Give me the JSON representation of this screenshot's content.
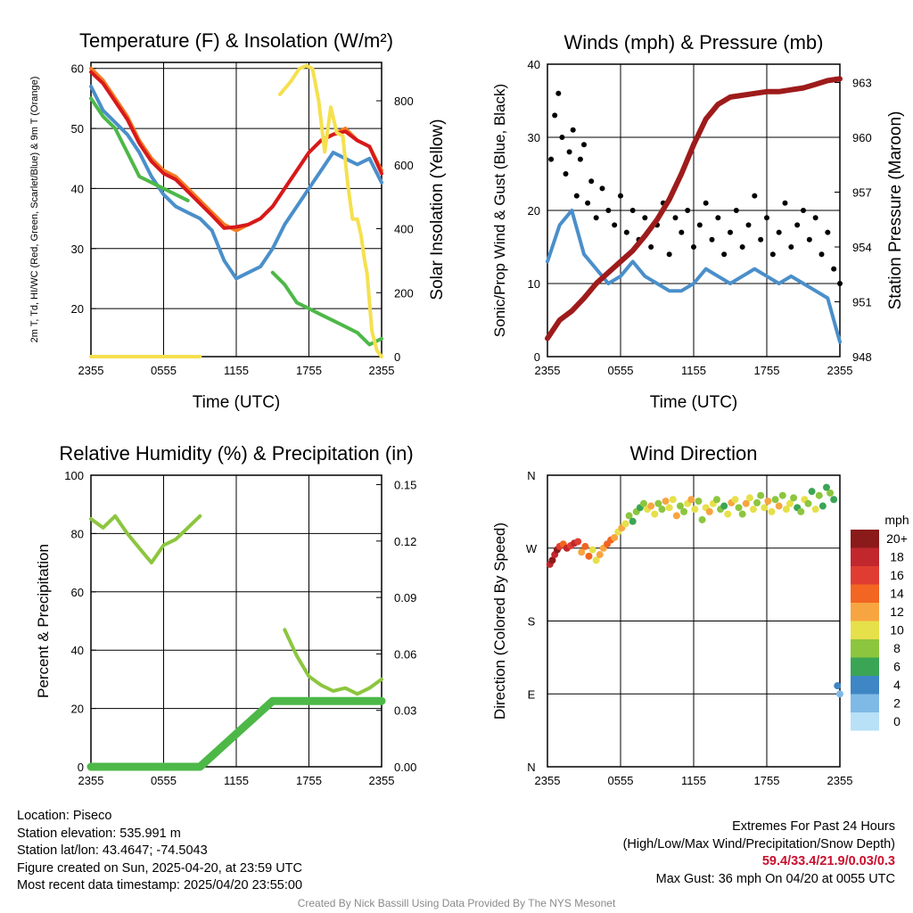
{
  "chart_data": [
    {
      "type": "line",
      "title": "Temperature (F) & Insolation (W/m²)",
      "xlabel": "Time (UTC)",
      "ylabel": "2m T, Td, HI/WC (Red, Green, Scarlet/Blue) & 9m T (Orange)",
      "ylabel2": "Solar Insolation (Yellow)",
      "x_ticks": [
        "2355",
        "0555",
        "1155",
        "1755",
        "2355"
      ],
      "ylim": [
        12,
        61
      ],
      "yticks": [
        20,
        30,
        40,
        50,
        60
      ],
      "y2lim": [
        0,
        920
      ],
      "y2ticks": [
        0,
        200,
        400,
        600,
        800
      ],
      "grid": true,
      "series": [
        {
          "color": "#4a8fca",
          "axis": "left",
          "x": [
            0,
            1,
            2,
            3,
            4,
            5,
            6,
            7,
            8,
            9,
            10,
            11,
            12,
            13,
            14,
            15,
            16,
            17,
            18,
            19,
            20,
            21,
            22,
            23,
            24
          ],
          "y": [
            57,
            53,
            51,
            49,
            46,
            42,
            39,
            37,
            36,
            35,
            33,
            28,
            25,
            26,
            27,
            30,
            34,
            37,
            40,
            43,
            46,
            45,
            44,
            45,
            41
          ]
        },
        {
          "color": "#4db848",
          "axis": "left",
          "x": [
            0,
            1,
            2,
            3,
            4,
            5,
            6,
            7,
            8,
            9,
            10,
            11,
            12,
            13,
            14,
            15,
            16,
            17,
            18,
            19,
            20,
            21,
            22,
            23,
            24
          ],
          "y": [
            55,
            52,
            50,
            46,
            42,
            41,
            40,
            39,
            38,
            null,
            null,
            null,
            null,
            null,
            null,
            26,
            24,
            21,
            20,
            19,
            18,
            17,
            16,
            14,
            15
          ]
        },
        {
          "color": "#f47b20",
          "axis": "left",
          "x": [
            0,
            1,
            2,
            3,
            4,
            5,
            6,
            7,
            8,
            9,
            10,
            11,
            12,
            13,
            14,
            15,
            16,
            17,
            18,
            19,
            20,
            21,
            22,
            23,
            24
          ],
          "y": [
            60,
            58,
            55,
            52,
            48,
            45,
            43,
            42,
            40,
            38,
            36,
            34,
            33,
            34,
            35,
            37,
            40,
            43,
            46,
            48,
            49,
            50,
            48,
            47,
            43
          ]
        },
        {
          "color": "#d7191c",
          "axis": "left",
          "x": [
            0,
            1,
            2,
            3,
            4,
            5,
            6,
            7,
            8,
            9,
            10,
            11,
            12,
            13,
            14,
            15,
            16,
            17,
            18,
            19,
            20,
            21,
            22,
            23,
            24
          ],
          "y": [
            59.4,
            57.5,
            54.5,
            51.5,
            47.5,
            44.5,
            42.5,
            41.5,
            39.5,
            37.5,
            35.5,
            33.4,
            33.6,
            34,
            35,
            37,
            40,
            43,
            46,
            48,
            49,
            49.5,
            48,
            47,
            42.5
          ]
        },
        {
          "color": "#f5e04f",
          "axis": "right",
          "x": [
            0,
            3,
            6,
            9,
            15,
            15.6,
            16.5,
            17.2,
            17.8,
            18.3,
            18.8,
            19.3,
            19.8,
            20.3,
            20.8,
            21.2,
            21.6,
            22.0,
            22.3,
            22.6,
            22.8,
            23.2,
            23.6,
            24
          ],
          "y": [
            0,
            0,
            0,
            0,
            null,
            820,
            860,
            900,
            910,
            900,
            800,
            640,
            780,
            700,
            690,
            540,
            430,
            430,
            380,
            300,
            260,
            80,
            20,
            0
          ]
        }
      ]
    },
    {
      "type": "line",
      "title": "Winds (mph) & Pressure (mb)",
      "xlabel": "Time (UTC)",
      "ylabel": "Sonic/Prop Wind & Gust (Blue, Black)",
      "ylabel2": "Station Pressure (Maroon)",
      "x_ticks": [
        "2355",
        "0555",
        "1155",
        "1755",
        "2355"
      ],
      "ylim": [
        0,
        40
      ],
      "yticks": [
        0,
        10,
        20,
        30,
        40
      ],
      "y2lim": [
        948,
        964
      ],
      "y2ticks": [
        948,
        951,
        954,
        957,
        960,
        963
      ],
      "grid": true,
      "series": [
        {
          "color": "#4a8fca",
          "axis": "left",
          "x": [
            0,
            1,
            2,
            3,
            4,
            5,
            6,
            7,
            8,
            9,
            10,
            11,
            12,
            13,
            14,
            15,
            16,
            17,
            18,
            19,
            20,
            21,
            22,
            23,
            24
          ],
          "y": [
            13,
            18,
            20,
            14,
            12,
            10,
            11,
            13,
            11,
            10,
            9,
            9,
            10,
            12,
            11,
            10,
            11,
            12,
            11,
            10,
            11,
            10,
            9,
            8,
            2
          ]
        },
        {
          "color": "#000000",
          "axis": "left",
          "points": "scatter",
          "x": [
            0.3,
            0.6,
            0.9,
            1.2,
            1.5,
            1.8,
            2.1,
            2.4,
            2.7,
            3.0,
            3.3,
            3.6,
            4.0,
            4.5,
            5.0,
            5.5,
            6.0,
            6.5,
            7.0,
            7.5,
            8.0,
            8.5,
            9.0,
            9.5,
            10.0,
            10.5,
            11.0,
            11.5,
            12.0,
            12.5,
            13.0,
            13.5,
            14.0,
            14.5,
            15.0,
            15.5,
            16.0,
            16.5,
            17.0,
            17.5,
            18.0,
            18.5,
            19.0,
            19.5,
            20.0,
            20.5,
            21.0,
            21.5,
            22.0,
            22.5,
            23.0,
            23.5,
            24.0
          ],
          "y": [
            27,
            33,
            36,
            30,
            25,
            28,
            31,
            22,
            27,
            29,
            21,
            24,
            19,
            23,
            20,
            18,
            22,
            17,
            20,
            16,
            19,
            15,
            18,
            21,
            14,
            19,
            17,
            20,
            15,
            18,
            21,
            16,
            19,
            14,
            17,
            20,
            15,
            18,
            22,
            16,
            19,
            14,
            17,
            21,
            15,
            18,
            20,
            16,
            19,
            14,
            17,
            12,
            10
          ]
        },
        {
          "color": "#9e1b1b",
          "axis": "right",
          "x": [
            0,
            1,
            2,
            3,
            4,
            5,
            6,
            7,
            8,
            9,
            10,
            11,
            12,
            13,
            14,
            15,
            16,
            17,
            18,
            19,
            20,
            21,
            22,
            23,
            24
          ],
          "y": [
            949,
            950,
            950.5,
            951.2,
            952,
            952.6,
            953.2,
            953.8,
            954.6,
            955.5,
            956.6,
            958,
            959.6,
            961,
            961.8,
            962.2,
            962.3,
            962.4,
            962.5,
            962.5,
            962.6,
            962.7,
            962.9,
            963.1,
            963.2
          ]
        }
      ]
    },
    {
      "type": "line",
      "title": "Relative Humidity (%) & Precipitation (in)",
      "ylabel": "Percent & Precipitation",
      "x_ticks": [
        "2355",
        "0555",
        "1155",
        "1755",
        "2355"
      ],
      "ylim": [
        0,
        100
      ],
      "yticks": [
        0,
        20,
        40,
        60,
        80,
        100
      ],
      "y2lim": [
        0,
        0.155
      ],
      "y2ticks": [
        "0.00",
        "0.03",
        "0.06",
        "0.09",
        "0.12",
        "0.15"
      ],
      "grid": true,
      "series": [
        {
          "color": "#8cc63f",
          "axis": "left",
          "x": [
            0,
            1,
            2,
            3,
            4,
            5,
            6,
            7,
            8,
            9,
            15,
            16,
            17,
            18,
            19,
            20,
            21,
            22,
            23,
            24
          ],
          "y": [
            85,
            82,
            86,
            80,
            75,
            70,
            76,
            78,
            82,
            86,
            null,
            47,
            38,
            31,
            28,
            26,
            27,
            25,
            27,
            30
          ]
        },
        {
          "color": "#4db848",
          "axis": "right",
          "x": [
            0,
            3,
            6,
            9,
            15,
            18,
            21,
            24
          ],
          "y": [
            0,
            0,
            0,
            0,
            0.035,
            0.035,
            0.035,
            0.035
          ]
        }
      ]
    },
    {
      "type": "scatter",
      "title": "Wind Direction",
      "ylabel": "Direction (Colored By Speed)",
      "x_ticks": [
        "2355",
        "0555",
        "1155",
        "1755",
        "2355"
      ],
      "y_ticks": [
        "N",
        "E",
        "S",
        "W",
        "N"
      ],
      "ylim": [
        0,
        360
      ],
      "grid": true,
      "legend": {
        "title": "mph",
        "placement": "right",
        "labels": [
          "20+",
          "18",
          "16",
          "14",
          "12",
          "10",
          "8",
          "6",
          "4",
          "2",
          "0"
        ],
        "colors": [
          "#8b1a1a",
          "#c1272d",
          "#e03c31",
          "#f26522",
          "#f7a541",
          "#e6e04a",
          "#8cc63f",
          "#3aa655",
          "#3e86c4",
          "#7fb9e6",
          "#b8e0f7"
        ]
      },
      "points": {
        "x": [
          0.2,
          0.4,
          0.6,
          0.8,
          1.0,
          1.3,
          1.6,
          1.9,
          2.2,
          2.5,
          2.8,
          3.1,
          3.4,
          3.7,
          4.0,
          4.3,
          4.6,
          4.9,
          5.2,
          5.5,
          5.8,
          6.1,
          6.4,
          6.7,
          7.0,
          7.3,
          7.6,
          7.9,
          8.2,
          8.5,
          8.8,
          9.1,
          9.4,
          9.7,
          10.0,
          10.3,
          10.6,
          10.9,
          11.2,
          11.5,
          11.8,
          12.1,
          12.4,
          12.7,
          13.0,
          13.3,
          13.6,
          13.9,
          14.2,
          14.5,
          14.8,
          15.1,
          15.4,
          15.7,
          16.0,
          16.3,
          16.6,
          16.9,
          17.2,
          17.5,
          17.8,
          18.1,
          18.4,
          18.7,
          19.0,
          19.3,
          19.6,
          19.9,
          20.2,
          20.5,
          20.8,
          21.1,
          21.4,
          21.7,
          22.0,
          22.3,
          22.6,
          22.9,
          23.2,
          23.5,
          23.8,
          24.0
        ],
        "dir": [
          250,
          255,
          262,
          268,
          272,
          275,
          270,
          273,
          276,
          278,
          265,
          272,
          260,
          268,
          255,
          262,
          270,
          275,
          280,
          283,
          290,
          295,
          300,
          310,
          303,
          315,
          320,
          325,
          318,
          322,
          312,
          325,
          318,
          328,
          320,
          330,
          310,
          322,
          315,
          325,
          330,
          318,
          328,
          305,
          320,
          315,
          325,
          330,
          318,
          322,
          312,
          326,
          330,
          320,
          312,
          325,
          332,
          318,
          326,
          335,
          320,
          328,
          315,
          330,
          322,
          335,
          318,
          325,
          332,
          320,
          315,
          330,
          325,
          340,
          318,
          335,
          322,
          345,
          338,
          330,
          100,
          90
        ],
        "speed": [
          18,
          20,
          17,
          19,
          16,
          14,
          18,
          15,
          17,
          16,
          12,
          14,
          13,
          10,
          9,
          11,
          12,
          14,
          13,
          11,
          10,
          12,
          9,
          8,
          6,
          7,
          5,
          8,
          10,
          12,
          9,
          7,
          8,
          11,
          10,
          9,
          12,
          8,
          7,
          10,
          11,
          9,
          8,
          7,
          10,
          12,
          9,
          8,
          7,
          6,
          10,
          11,
          9,
          8,
          7,
          12,
          10,
          9,
          8,
          7,
          10,
          11,
          9,
          8,
          12,
          7,
          9,
          10,
          8,
          6,
          7,
          9,
          8,
          6,
          10,
          7,
          6,
          5,
          8,
          6,
          3,
          2
        ]
      }
    }
  ],
  "info": {
    "location": "Location: Piseco",
    "elevation": "Station elevation: 535.991 m",
    "latlon": "Station lat/lon: 43.4647; -74.5043",
    "created": "Figure created on Sun, 2025-04-20, at 23:59 UTC",
    "recent": "Most recent data timestamp: 2025/04/20 23:55:00"
  },
  "extremes": {
    "heading": "Extremes For Past 24 Hours",
    "subheading": "(High/Low/Max Wind/Precipitation/Snow Depth)",
    "values": "59.4/33.4/21.9/0.03/0.3",
    "gust": "Max Gust: 36 mph On 04/20 at 0055 UTC",
    "value_color": "#c8102e"
  },
  "credit": "Created By Nick Bassill Using Data Provided By The NYS Mesonet"
}
